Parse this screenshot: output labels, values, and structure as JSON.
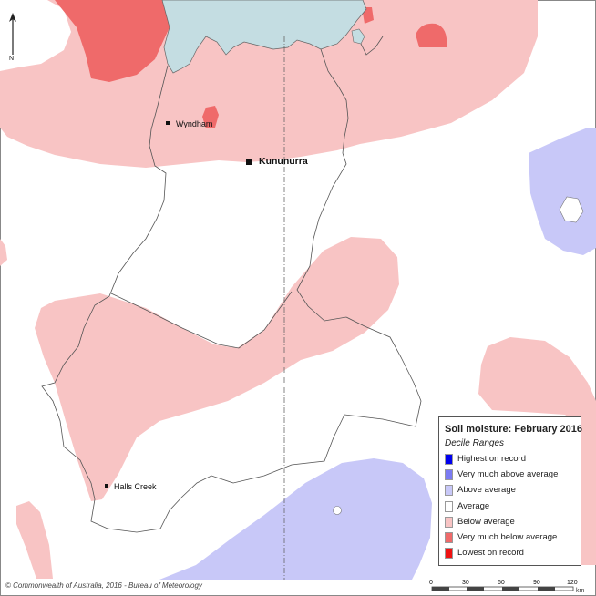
{
  "map": {
    "towns": [
      {
        "name": "Wyndham"
      },
      {
        "name": "Kununurra"
      },
      {
        "name": "Halls Creek"
      }
    ],
    "legend": {
      "title": "Soil moisture: February 2016",
      "subtitle": "Decile Ranges",
      "items": [
        {
          "label": "Highest on record",
          "color": "#0000ee"
        },
        {
          "label": "Very much above average",
          "color": "#7b7bf2"
        },
        {
          "label": "Above average",
          "color": "#c8c8f8"
        },
        {
          "label": "Average",
          "color": "#ffffff"
        },
        {
          "label": "Below average",
          "color": "#f8c4c4"
        },
        {
          "label": "Very much below average",
          "color": "#ef6a6a"
        },
        {
          "label": "Lowest on record",
          "color": "#ee1111"
        }
      ]
    },
    "scale_bar": {
      "ticks": [
        "0",
        "30",
        "60",
        "90",
        "120"
      ],
      "unit": "km"
    },
    "copyright": "© Commonwealth of Australia, 2016 - Bureau of Meteorology",
    "north_arrow": "N",
    "colors": {
      "sea": "#c4dde2",
      "below_average": "#f8c4c4",
      "very_much_below": "#ef6a6a",
      "above_average": "#c8c8f8",
      "boundary": "#555555"
    }
  }
}
